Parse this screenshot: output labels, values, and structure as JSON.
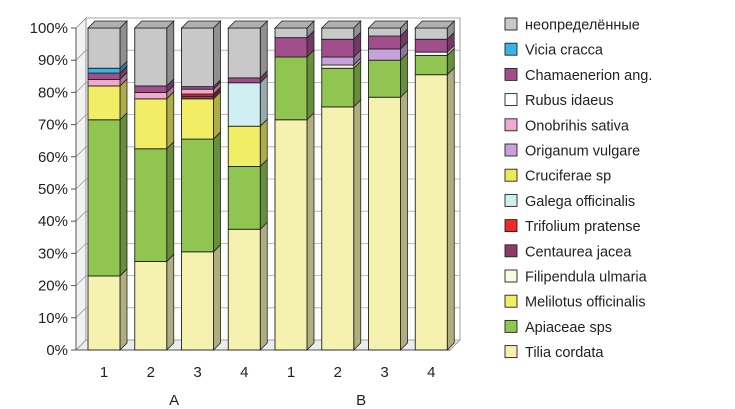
{
  "chart_data": {
    "type": "bar",
    "stacked": true,
    "normalized": true,
    "three_d": true,
    "categories": [
      "1",
      "2",
      "3",
      "4",
      "1",
      "2",
      "3",
      "4"
    ],
    "groups": [
      {
        "label": "A",
        "categories": [
          0,
          1,
          2,
          3
        ]
      },
      {
        "label": "B",
        "categories": [
          4,
          5,
          6,
          7
        ]
      }
    ],
    "y_ticks": [
      "0%",
      "10%",
      "20%",
      "30%",
      "40%",
      "50%",
      "60%",
      "70%",
      "80%",
      "90%",
      "100%"
    ],
    "ylim": [
      0,
      100
    ],
    "grid": "horizontal",
    "legend_position": "right",
    "series": [
      {
        "name": "Tilia cordata",
        "color": "#f5f2b0",
        "values": [
          23,
          27.5,
          30.5,
          37.5,
          71.5,
          75.5,
          78.5,
          85.5
        ]
      },
      {
        "name": "Apiaceae sps",
        "color": "#8fc550",
        "values": [
          48.5,
          35,
          35,
          19.5,
          19.5,
          12,
          11.5,
          6
        ]
      },
      {
        "name": "Melilotus officinalis",
        "color": "#f1ee66",
        "values": [
          10.5,
          15.5,
          12.5,
          12.5,
          0,
          0,
          0,
          0
        ]
      },
      {
        "name": "Filipendula ulmaria",
        "color": "#fcfae0",
        "values": [
          0,
          0,
          0,
          0,
          0,
          1,
          0,
          0
        ]
      },
      {
        "name": "Centaurea jacea",
        "color": "#8e3b6a",
        "values": [
          0,
          0,
          0.8,
          0,
          0,
          0,
          0,
          0
        ]
      },
      {
        "name": "Trifolium pratense",
        "color": "#ee2a24",
        "values": [
          0,
          0,
          0.7,
          0,
          0,
          0,
          0,
          0
        ]
      },
      {
        "name": "Galega officinalis",
        "color": "#cfeff3",
        "values": [
          0,
          0,
          0,
          13.5,
          0,
          0,
          0,
          0
        ]
      },
      {
        "name": "Cruciferae sp",
        "color": "#ecea55",
        "values": [
          0,
          0,
          0,
          0,
          0,
          0,
          0,
          0
        ]
      },
      {
        "name": "Origanum vulgare",
        "color": "#c7a2d8",
        "values": [
          0,
          0,
          0,
          0,
          0,
          2.5,
          3.5,
          0
        ]
      },
      {
        "name": "Onobrihis sativa",
        "color": "#f0a8cd",
        "values": [
          2,
          2,
          1.5,
          0,
          0,
          0,
          0,
          0
        ]
      },
      {
        "name": "Rubus idaeus",
        "color": "#ffffff",
        "values": [
          0,
          0,
          0,
          0,
          0,
          0,
          0,
          1
        ]
      },
      {
        "name": "Chamaenerion ang.",
        "color": "#a04f8c",
        "values": [
          2,
          2,
          0.8,
          1.5,
          6,
          5.5,
          4,
          4
        ]
      },
      {
        "name": "Vicia cracca",
        "color": "#35b6e5",
        "values": [
          1.5,
          0,
          0,
          0,
          0,
          0,
          0,
          0
        ]
      },
      {
        "name": "неопределённые",
        "color": "#c8c8c8",
        "values": [
          12.5,
          18,
          18.2,
          15.5,
          3,
          3.5,
          2.5,
          3.5
        ]
      }
    ]
  }
}
